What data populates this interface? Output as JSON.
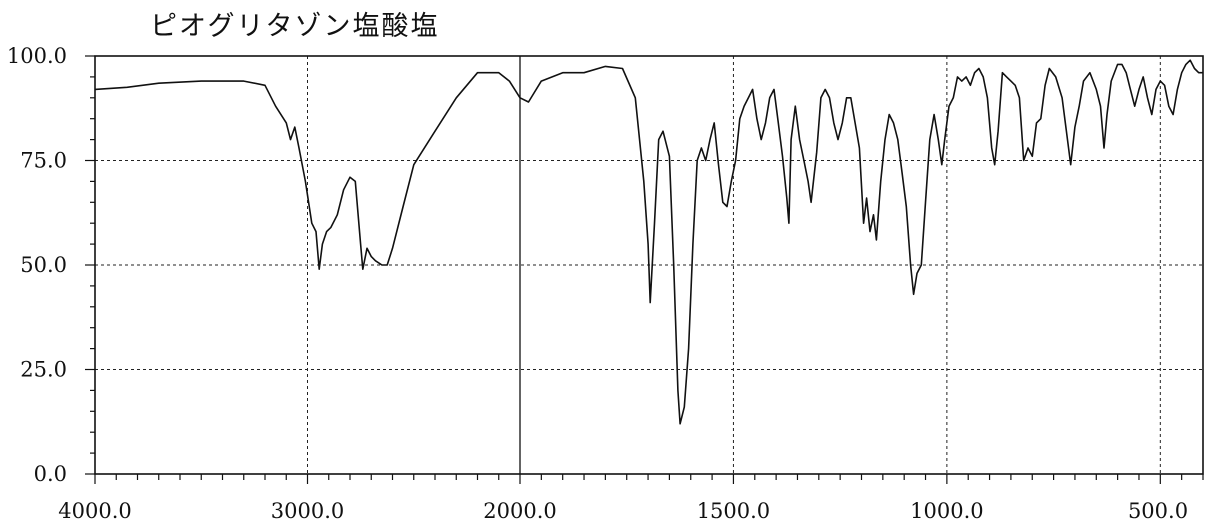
{
  "chart_data": {
    "type": "line",
    "title": "ピオグリタゾン塩酸塩",
    "xlabel": "",
    "ylabel": "",
    "xlim": [
      4000,
      400
    ],
    "ylim": [
      0,
      100
    ],
    "x_tick_labels": [
      "4000.0",
      "3000.0",
      "2000.0",
      "1500.0",
      "1000.0",
      "500.0"
    ],
    "y_tick_labels": [
      "0.0",
      "25.0",
      "50.0",
      "75.0",
      "100.0"
    ],
    "grid": true,
    "colors": {
      "line": "#111111",
      "grid": "#222222",
      "axis": "#111111"
    },
    "series": [
      {
        "points": [
          [
            4000,
            92
          ],
          [
            3850,
            92.5
          ],
          [
            3700,
            93.5
          ],
          [
            3500,
            94
          ],
          [
            3400,
            94
          ],
          [
            3300,
            94
          ],
          [
            3200,
            93
          ],
          [
            3150,
            88
          ],
          [
            3100,
            84
          ],
          [
            3080,
            80
          ],
          [
            3060,
            83
          ],
          [
            3040,
            78
          ],
          [
            3010,
            70
          ],
          [
            2980,
            60
          ],
          [
            2960,
            58
          ],
          [
            2945,
            49
          ],
          [
            2930,
            55
          ],
          [
            2910,
            58
          ],
          [
            2890,
            59
          ],
          [
            2860,
            62
          ],
          [
            2830,
            68
          ],
          [
            2800,
            71
          ],
          [
            2775,
            70
          ],
          [
            2750,
            55
          ],
          [
            2740,
            49
          ],
          [
            2720,
            54
          ],
          [
            2700,
            52
          ],
          [
            2680,
            51
          ],
          [
            2650,
            50
          ],
          [
            2625,
            50
          ],
          [
            2600,
            54
          ],
          [
            2550,
            64
          ],
          [
            2500,
            74
          ],
          [
            2400,
            82
          ],
          [
            2300,
            90
          ],
          [
            2200,
            96
          ],
          [
            2100,
            96
          ],
          [
            2050,
            94
          ],
          [
            2000,
            90
          ],
          [
            1980,
            89
          ],
          [
            1950,
            94
          ],
          [
            1900,
            96
          ],
          [
            1850,
            96
          ],
          [
            1800,
            97.5
          ],
          [
            1760,
            97
          ],
          [
            1730,
            90
          ],
          [
            1710,
            70
          ],
          [
            1700,
            55
          ],
          [
            1695,
            41
          ],
          [
            1685,
            60
          ],
          [
            1675,
            80
          ],
          [
            1665,
            82
          ],
          [
            1650,
            76
          ],
          [
            1640,
            50
          ],
          [
            1630,
            20
          ],
          [
            1625,
            12
          ],
          [
            1615,
            16
          ],
          [
            1605,
            30
          ],
          [
            1595,
            55
          ],
          [
            1585,
            75
          ],
          [
            1575,
            78
          ],
          [
            1565,
            75
          ],
          [
            1555,
            80
          ],
          [
            1545,
            84
          ],
          [
            1535,
            74
          ],
          [
            1525,
            65
          ],
          [
            1515,
            64
          ],
          [
            1505,
            70
          ],
          [
            1495,
            75
          ],
          [
            1485,
            85
          ],
          [
            1475,
            88
          ],
          [
            1465,
            90
          ],
          [
            1455,
            92
          ],
          [
            1445,
            85
          ],
          [
            1435,
            80
          ],
          [
            1425,
            84
          ],
          [
            1415,
            90
          ],
          [
            1405,
            92
          ],
          [
            1395,
            84
          ],
          [
            1385,
            76
          ],
          [
            1375,
            66
          ],
          [
            1370,
            60
          ],
          [
            1365,
            80
          ],
          [
            1355,
            88
          ],
          [
            1345,
            80
          ],
          [
            1335,
            75
          ],
          [
            1325,
            70
          ],
          [
            1318,
            65
          ],
          [
            1305,
            77
          ],
          [
            1295,
            90
          ],
          [
            1285,
            92
          ],
          [
            1275,
            90
          ],
          [
            1265,
            84
          ],
          [
            1255,
            80
          ],
          [
            1245,
            84
          ],
          [
            1235,
            90
          ],
          [
            1225,
            90
          ],
          [
            1215,
            84
          ],
          [
            1205,
            78
          ],
          [
            1195,
            60
          ],
          [
            1188,
            66
          ],
          [
            1180,
            58
          ],
          [
            1172,
            62
          ],
          [
            1165,
            56
          ],
          [
            1155,
            70
          ],
          [
            1145,
            80
          ],
          [
            1135,
            86
          ],
          [
            1125,
            84
          ],
          [
            1115,
            80
          ],
          [
            1105,
            72
          ],
          [
            1095,
            64
          ],
          [
            1085,
            50
          ],
          [
            1078,
            43
          ],
          [
            1070,
            48
          ],
          [
            1060,
            50
          ],
          [
            1050,
            65
          ],
          [
            1040,
            80
          ],
          [
            1030,
            86
          ],
          [
            1020,
            80
          ],
          [
            1012,
            74
          ],
          [
            1005,
            80
          ],
          [
            995,
            88
          ],
          [
            985,
            90
          ],
          [
            975,
            95
          ],
          [
            965,
            94
          ],
          [
            955,
            95
          ],
          [
            945,
            93
          ],
          [
            935,
            96
          ],
          [
            925,
            97
          ],
          [
            915,
            95
          ],
          [
            905,
            90
          ],
          [
            895,
            78
          ],
          [
            888,
            74
          ],
          [
            880,
            82
          ],
          [
            870,
            96
          ],
          [
            860,
            95
          ],
          [
            850,
            94
          ],
          [
            840,
            93
          ],
          [
            830,
            90
          ],
          [
            820,
            75
          ],
          [
            810,
            78
          ],
          [
            800,
            76
          ],
          [
            790,
            84
          ],
          [
            780,
            85
          ],
          [
            770,
            93
          ],
          [
            760,
            97
          ],
          [
            745,
            95
          ],
          [
            730,
            90
          ],
          [
            720,
            82
          ],
          [
            710,
            74
          ],
          [
            700,
            83
          ],
          [
            690,
            88
          ],
          [
            680,
            94
          ],
          [
            665,
            96
          ],
          [
            650,
            92
          ],
          [
            640,
            88
          ],
          [
            632,
            78
          ],
          [
            625,
            86
          ],
          [
            615,
            94
          ],
          [
            600,
            98
          ],
          [
            590,
            98
          ],
          [
            580,
            96
          ],
          [
            570,
            92
          ],
          [
            560,
            88
          ],
          [
            550,
            92
          ],
          [
            540,
            95
          ],
          [
            530,
            90
          ],
          [
            520,
            86
          ],
          [
            510,
            92
          ],
          [
            500,
            94
          ],
          [
            490,
            93
          ],
          [
            480,
            88
          ],
          [
            470,
            86
          ],
          [
            460,
            92
          ],
          [
            450,
            96
          ],
          [
            440,
            98
          ],
          [
            430,
            99
          ],
          [
            420,
            97
          ],
          [
            410,
            96
          ],
          [
            400,
            96
          ]
        ]
      }
    ]
  }
}
